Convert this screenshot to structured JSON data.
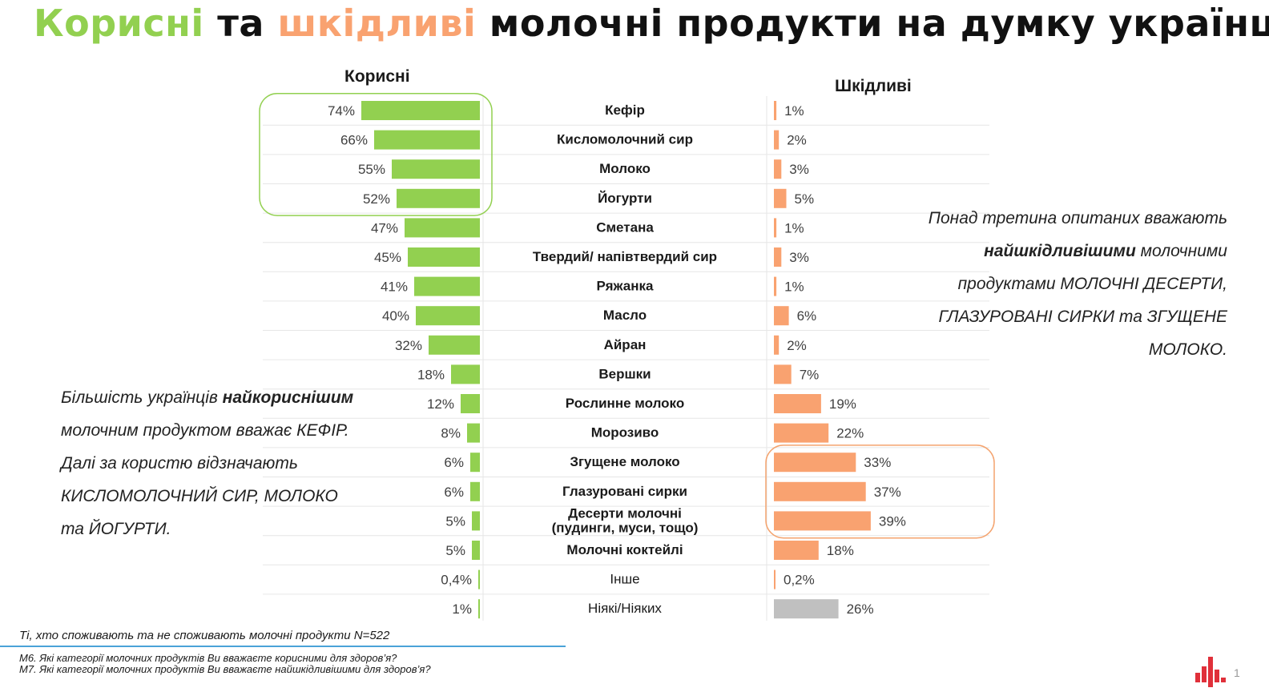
{
  "title": {
    "part1": "Корисні",
    "part2": "та",
    "part3": "шкідливі",
    "part4": "молочні продукти на думку українців"
  },
  "colors": {
    "useful": "#92d050",
    "harmful": "#f9a270",
    "none": "#c0c0c0",
    "highlight_useful": "#92d050",
    "highlight_harmful": "#f4a36e"
  },
  "chart_data": {
    "type": "bar",
    "orientation": "horizontal",
    "left_title": "Корисні",
    "right_title": "Шкідливі",
    "categories": [
      "Кефір",
      "Кисломолочний сир",
      "Молоко",
      "Йогурти",
      "Сметана",
      "Твердий/ напівтвердий сир",
      "Ряжанка",
      "Масло",
      "Айран",
      "Вершки",
      "Рослинне молоко",
      "Морозиво",
      "Згущене молоко",
      "Глазуровані сирки",
      "Десерти молочні\n(пудинги, муси, тощо)",
      "Молочні коктейлі",
      "Інше",
      "Ніякі/Ніяких"
    ],
    "bold_categories": 16,
    "series": [
      {
        "name": "Корисні",
        "values": [
          74,
          66,
          55,
          52,
          47,
          45,
          41,
          40,
          32,
          18,
          12,
          8,
          6,
          6,
          5,
          5,
          0.4,
          1
        ],
        "labels": [
          "74%",
          "66%",
          "55%",
          "52%",
          "47%",
          "45%",
          "41%",
          "40%",
          "32%",
          "18%",
          "12%",
          "8%",
          "6%",
          "6%",
          "5%",
          "5%",
          "0,4%",
          "1%"
        ]
      },
      {
        "name": "Шкідливі",
        "values": [
          1,
          2,
          3,
          5,
          1,
          3,
          1,
          6,
          2,
          7,
          19,
          22,
          33,
          37,
          39,
          18,
          0.2,
          26
        ],
        "labels": [
          "1%",
          "2%",
          "3%",
          "5%",
          "1%",
          "3%",
          "1%",
          "6%",
          "2%",
          "7%",
          "19%",
          "22%",
          "33%",
          "37%",
          "39%",
          "18%",
          "0,2%",
          "26%"
        ]
      }
    ],
    "highlight_useful": [
      0,
      3
    ],
    "highlight_harmful": [
      12,
      14
    ]
  },
  "notes": {
    "left": {
      "line1a": "Більшість українців ",
      "line1b": "найкориснішим",
      "line2": "молочним продуктом вважає КЕФІР.",
      "line3": "Далі за користю відзначають",
      "line4": "КИСЛОМОЛОЧНИЙ СИР, МОЛОКО",
      "line5": "та ЙОГУРТИ."
    },
    "right": {
      "line1": "Понад третина опитаних вважають",
      "line2a": "найшкідливішими",
      "line2b": " молочними",
      "line3": "продуктами МОЛОЧНІ ДЕСЕРТИ,",
      "line4": "ГЛАЗУРОВАНІ СИРКИ та ЗГУЩЕНЕ",
      "line5": "МОЛОКО."
    }
  },
  "footer": {
    "sample": "Ті, хто споживають та не споживають молочні продукти N=522",
    "q1": "М6. Які категорії молочних продуктів Ви вважаєте корисними для здоров’я?",
    "q2": "М7. Які категорії молочних продуктів Ви вважаєте найшкідливішими для здоров’я?",
    "page": "1"
  }
}
